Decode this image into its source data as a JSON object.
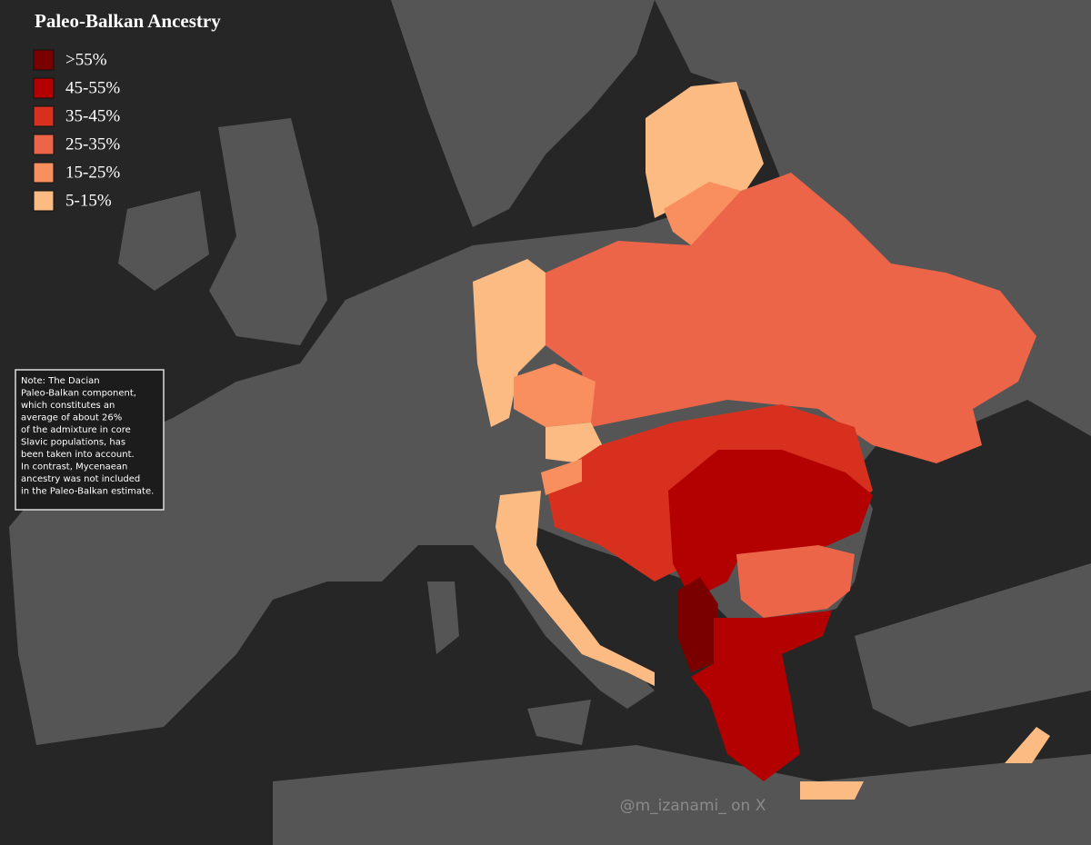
{
  "title": "Paleo-Balkan Ancestry",
  "legend": [
    {
      "label": ">55%",
      "color": "#7a0000"
    },
    {
      "label": "45-55%",
      "color": "#b30000"
    },
    {
      "label": "35-45%",
      "color": "#d7301f"
    },
    {
      "label": "25-35%",
      "color": "#ec6548"
    },
    {
      "label": "15-25%",
      "color": "#f98e5e"
    },
    {
      "label": "5-15%",
      "color": "#fdbb84"
    }
  ],
  "note": [
    "Note: The Dacian",
    "Paleo-Balkan component,",
    "which constitutes an",
    "average of about 26%",
    "of the admixture in core",
    "Slavic populations, has",
    "been taken into account.",
    "In contrast, Mycenaean",
    "ancestry was not included",
    "in the Paleo-Balkan estimate."
  ],
  "watermark": "@m_izanami_ on X"
}
